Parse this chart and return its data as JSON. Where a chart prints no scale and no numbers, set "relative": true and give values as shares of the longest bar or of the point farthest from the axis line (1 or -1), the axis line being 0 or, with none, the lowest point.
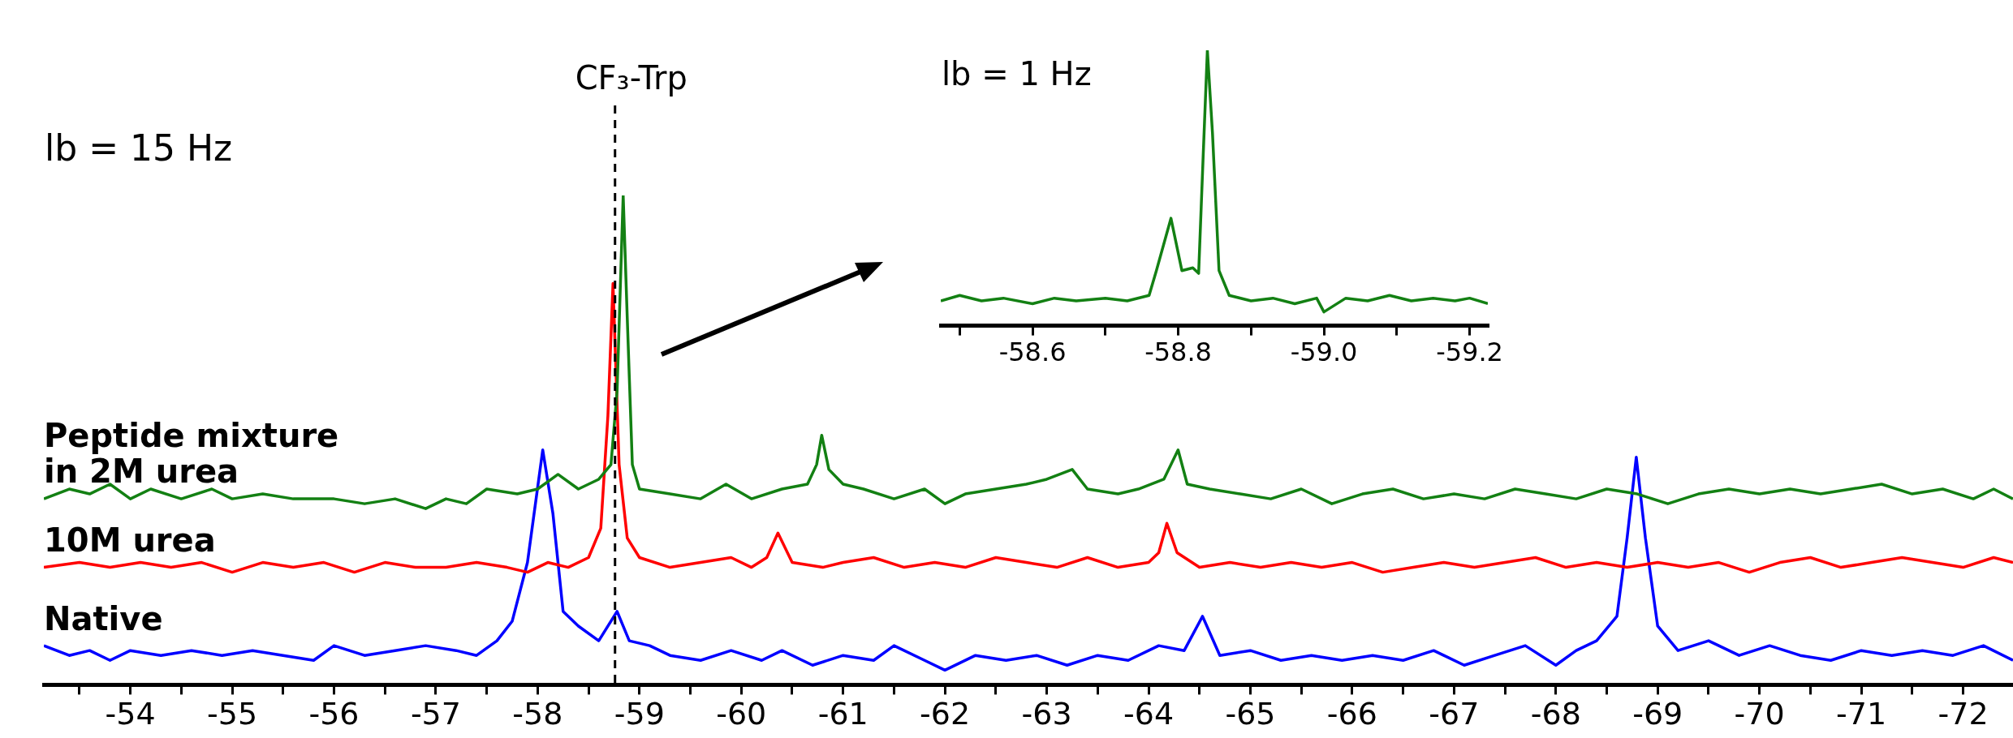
{
  "chart_data": [
    {
      "type": "line",
      "relative": true,
      "xlim": [
        -53.15,
        -72.49
      ],
      "xticks": [
        {
          "value": -53.5,
          "label": null
        },
        -54,
        {
          "value": -54.5,
          "label": null
        },
        -55,
        {
          "value": -55.5,
          "label": null
        },
        -56,
        {
          "value": -56.5,
          "label": null
        },
        -57,
        {
          "value": -57.5,
          "label": null
        },
        -58,
        {
          "value": -58.5,
          "label": null
        },
        -59,
        {
          "value": -59.5,
          "label": null
        },
        -60,
        {
          "value": -60.5,
          "label": null
        },
        -61,
        {
          "value": -61.5,
          "label": null
        },
        -62,
        {
          "value": -62.5,
          "label": null
        },
        -63,
        {
          "value": -63.5,
          "label": null
        },
        -64,
        {
          "value": -64.5,
          "label": null
        },
        -65,
        {
          "value": -65.5,
          "label": null
        },
        -66,
        {
          "value": -66.5,
          "label": null
        },
        -67,
        {
          "value": -67.5,
          "label": null
        },
        -68,
        {
          "value": -68.5,
          "label": null
        },
        -69,
        {
          "value": -69.5,
          "label": null
        },
        -70,
        {
          "value": -70.5,
          "label": null
        },
        -71,
        {
          "value": -71.5,
          "label": null
        },
        -72
      ],
      "tick_labels": "x",
      "marker": "none",
      "line_style": "solid",
      "annotations": [
        "lb = 15 Hz"
      ],
      "ref_lines": [
        {
          "axis": "x",
          "value": -58.76,
          "label": "CF₃-Trp",
          "color": "#000000",
          "line_style": "dashed"
        }
      ],
      "series": [
        {
          "name": "Peptide mixture in 2M urea",
          "color": "#138013",
          "x": [
            -53.15,
            -53.4,
            -53.6,
            -53.8,
            -54.0,
            -54.2,
            -54.5,
            -54.8,
            -55.0,
            -55.3,
            -55.6,
            -56.0,
            -56.3,
            -56.6,
            -56.9,
            -57.1,
            -57.3,
            -57.5,
            -57.8,
            -58.0,
            -58.2,
            -58.4,
            -58.6,
            -58.72,
            -58.78,
            -58.84,
            -58.88,
            -58.93,
            -59.0,
            -59.3,
            -59.6,
            -59.85,
            -60.1,
            -60.4,
            -60.65,
            -60.74,
            -60.79,
            -60.86,
            -61.0,
            -61.2,
            -61.5,
            -61.8,
            -62.0,
            -62.2,
            -62.5,
            -62.8,
            -63.0,
            -63.25,
            -63.4,
            -63.7,
            -63.9,
            -64.15,
            -64.29,
            -64.38,
            -64.6,
            -64.9,
            -65.2,
            -65.5,
            -65.8,
            -66.1,
            -66.4,
            -66.7,
            -67.0,
            -67.3,
            -67.6,
            -67.9,
            -68.2,
            -68.5,
            -68.8,
            -69.1,
            -69.4,
            -69.7,
            -70.0,
            -70.3,
            -70.6,
            -70.9,
            -71.2,
            -71.5,
            -71.8,
            -72.1,
            -72.3,
            -72.49
          ],
          "values": [
            0.38,
            0.4,
            0.39,
            0.41,
            0.38,
            0.4,
            0.38,
            0.4,
            0.38,
            0.39,
            0.38,
            0.38,
            0.37,
            0.38,
            0.36,
            0.38,
            0.37,
            0.4,
            0.39,
            0.4,
            0.43,
            0.4,
            0.42,
            0.45,
            0.6,
            1.0,
            0.75,
            0.45,
            0.4,
            0.39,
            0.38,
            0.41,
            0.38,
            0.4,
            0.41,
            0.45,
            0.51,
            0.44,
            0.41,
            0.4,
            0.38,
            0.4,
            0.37,
            0.39,
            0.4,
            0.41,
            0.42,
            0.44,
            0.4,
            0.39,
            0.4,
            0.42,
            0.48,
            0.41,
            0.4,
            0.39,
            0.38,
            0.4,
            0.37,
            0.39,
            0.4,
            0.38,
            0.39,
            0.38,
            0.4,
            0.39,
            0.38,
            0.4,
            0.39,
            0.37,
            0.39,
            0.4,
            0.39,
            0.4,
            0.39,
            0.4,
            0.41,
            0.39,
            0.4,
            0.38,
            0.4,
            0.38
          ]
        },
        {
          "name": "10M urea",
          "color": "#ff0000",
          "x": [
            -53.15,
            -53.5,
            -53.8,
            -54.1,
            -54.4,
            -54.7,
            -55.0,
            -55.3,
            -55.6,
            -55.9,
            -56.2,
            -56.5,
            -56.8,
            -57.1,
            -57.4,
            -57.7,
            -57.9,
            -58.1,
            -58.3,
            -58.5,
            -58.62,
            -58.69,
            -58.74,
            -58.8,
            -58.88,
            -59.0,
            -59.3,
            -59.6,
            -59.9,
            -60.1,
            -60.25,
            -60.36,
            -60.5,
            -60.8,
            -61.0,
            -61.3,
            -61.6,
            -61.9,
            -62.2,
            -62.5,
            -62.8,
            -63.1,
            -63.4,
            -63.7,
            -64.0,
            -64.1,
            -64.18,
            -64.28,
            -64.5,
            -64.8,
            -65.1,
            -65.4,
            -65.7,
            -66.0,
            -66.3,
            -66.6,
            -66.9,
            -67.2,
            -67.5,
            -67.8,
            -68.1,
            -68.4,
            -68.7,
            -69.0,
            -69.3,
            -69.6,
            -69.9,
            -70.2,
            -70.5,
            -70.8,
            -71.1,
            -71.4,
            -71.7,
            -72.0,
            -72.3,
            -72.49
          ],
          "values": [
            0.24,
            0.25,
            0.24,
            0.25,
            0.24,
            0.25,
            0.23,
            0.25,
            0.24,
            0.25,
            0.23,
            0.25,
            0.24,
            0.24,
            0.25,
            0.24,
            0.23,
            0.25,
            0.24,
            0.26,
            0.32,
            0.55,
            0.82,
            0.45,
            0.3,
            0.26,
            0.24,
            0.25,
            0.26,
            0.24,
            0.26,
            0.31,
            0.25,
            0.24,
            0.25,
            0.26,
            0.24,
            0.25,
            0.24,
            0.26,
            0.25,
            0.24,
            0.26,
            0.24,
            0.25,
            0.27,
            0.33,
            0.27,
            0.24,
            0.25,
            0.24,
            0.25,
            0.24,
            0.25,
            0.23,
            0.24,
            0.25,
            0.24,
            0.25,
            0.26,
            0.24,
            0.25,
            0.24,
            0.25,
            0.24,
            0.25,
            0.23,
            0.25,
            0.26,
            0.24,
            0.25,
            0.26,
            0.25,
            0.24,
            0.26,
            0.25
          ]
        },
        {
          "name": "Native",
          "color": "#0000ff",
          "x": [
            -53.15,
            -53.4,
            -53.6,
            -53.8,
            -54.0,
            -54.3,
            -54.6,
            -54.9,
            -55.2,
            -55.5,
            -55.8,
            -56.0,
            -56.3,
            -56.6,
            -56.9,
            -57.2,
            -57.4,
            -57.6,
            -57.75,
            -57.9,
            -58.05,
            -58.15,
            -58.25,
            -58.4,
            -58.6,
            -58.78,
            -58.9,
            -59.1,
            -59.3,
            -59.6,
            -59.9,
            -60.2,
            -60.4,
            -60.7,
            -61.0,
            -61.3,
            -61.5,
            -61.8,
            -62.0,
            -62.3,
            -62.6,
            -62.9,
            -63.2,
            -63.5,
            -63.8,
            -64.1,
            -64.35,
            -64.53,
            -64.7,
            -65.0,
            -65.3,
            -65.6,
            -65.9,
            -66.2,
            -66.5,
            -66.8,
            -67.1,
            -67.4,
            -67.7,
            -68.0,
            -68.2,
            -68.4,
            -68.6,
            -68.7,
            -68.79,
            -68.88,
            -69.0,
            -69.2,
            -69.5,
            -69.8,
            -70.1,
            -70.4,
            -70.7,
            -71.0,
            -71.3,
            -71.6,
            -71.9,
            -72.2,
            -72.49
          ],
          "values": [
            0.08,
            0.06,
            0.07,
            0.05,
            0.07,
            0.06,
            0.07,
            0.06,
            0.07,
            0.06,
            0.05,
            0.08,
            0.06,
            0.07,
            0.08,
            0.07,
            0.06,
            0.09,
            0.13,
            0.25,
            0.48,
            0.35,
            0.15,
            0.12,
            0.09,
            0.15,
            0.09,
            0.08,
            0.06,
            0.05,
            0.07,
            0.05,
            0.07,
            0.04,
            0.06,
            0.05,
            0.08,
            0.05,
            0.03,
            0.06,
            0.05,
            0.06,
            0.04,
            0.06,
            0.05,
            0.08,
            0.07,
            0.14,
            0.06,
            0.07,
            0.05,
            0.06,
            0.05,
            0.06,
            0.05,
            0.07,
            0.04,
            0.06,
            0.08,
            0.04,
            0.07,
            0.09,
            0.14,
            0.3,
            0.465,
            0.3,
            0.12,
            0.07,
            0.09,
            0.06,
            0.08,
            0.06,
            0.05,
            0.07,
            0.06,
            0.07,
            0.06,
            0.08,
            0.05
          ]
        }
      ]
    },
    {
      "type": "line",
      "relative": true,
      "xlim": [
        -58.474,
        -59.225
      ],
      "xticks": [
        {
          "value": -58.5,
          "label": null
        },
        -58.6,
        {
          "value": -58.7,
          "label": null
        },
        -58.8,
        {
          "value": -58.9,
          "label": null
        },
        {
          "value": -59,
          "label": "-59.0"
        },
        {
          "value": -59.1,
          "label": null
        },
        -59.2
      ],
      "tick_labels": "x",
      "marker": "none",
      "line_style": "solid",
      "annotations": [
        "lb = 1 Hz"
      ],
      "series": [
        {
          "color": "#138013",
          "x": [
            -58.474,
            -58.5,
            -58.53,
            -58.56,
            -58.6,
            -58.63,
            -58.66,
            -58.7,
            -58.73,
            -58.76,
            -58.77,
            -58.79,
            -58.805,
            -58.82,
            -58.828,
            -58.834,
            -58.84,
            -58.847,
            -58.856,
            -58.87,
            -58.9,
            -58.93,
            -58.96,
            -58.99,
            -59.0,
            -59.03,
            -59.06,
            -59.09,
            -59.12,
            -59.15,
            -59.18,
            -59.2,
            -59.225
          ],
          "values": [
            0.09,
            0.11,
            0.09,
            0.1,
            0.08,
            0.1,
            0.09,
            0.1,
            0.09,
            0.11,
            0.2,
            0.39,
            0.2,
            0.21,
            0.19,
            0.6,
            1.0,
            0.7,
            0.2,
            0.11,
            0.09,
            0.1,
            0.08,
            0.1,
            0.05,
            0.1,
            0.09,
            0.11,
            0.09,
            0.1,
            0.09,
            0.1,
            0.08
          ]
        }
      ]
    }
  ]
}
